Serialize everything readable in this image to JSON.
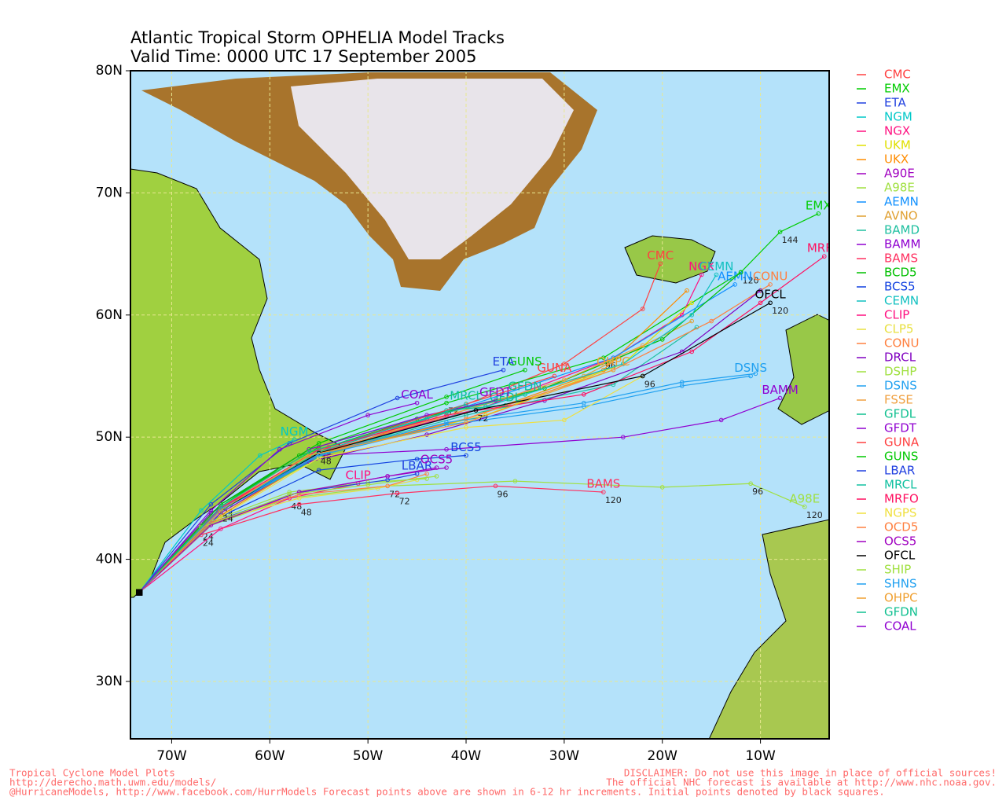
{
  "chart_data": {
    "type": "track-map",
    "title": "Atlantic Tropical Storm OPHELIA Model Tracks",
    "subtitle": "Valid Time: 0000 UTC 17 September 2005",
    "xlim": [
      -74.2,
      -3.0
    ],
    "ylim": [
      25.3,
      80.0
    ],
    "xticks": [
      {
        "value": -70,
        "label": "70W"
      },
      {
        "value": -60,
        "label": "60W"
      },
      {
        "value": -50,
        "label": "50W"
      },
      {
        "value": -40,
        "label": "40W"
      },
      {
        "value": -30,
        "label": "30W"
      },
      {
        "value": -20,
        "label": "20W"
      },
      {
        "value": -10,
        "label": "10W"
      }
    ],
    "yticks": [
      {
        "value": 30,
        "label": "30N"
      },
      {
        "value": 40,
        "label": "40N"
      },
      {
        "value": 50,
        "label": "50N"
      },
      {
        "value": 60,
        "label": "60N"
      },
      {
        "value": 70,
        "label": "70N"
      },
      {
        "value": 80,
        "label": "80N"
      }
    ],
    "grid": true,
    "series": [
      {
        "name": "CMC",
        "color": "#ff4040",
        "end_label": true,
        "lon": [
          -73.3,
          -66,
          -56,
          -42,
          -30,
          -22,
          -20.2
        ],
        "lat": [
          37.3,
          43.5,
          48.3,
          52,
          56,
          60.5,
          64.2
        ]
      },
      {
        "name": "EMX",
        "color": "#00cc00",
        "end_label": true,
        "lon": [
          -73.3,
          -65,
          -55,
          -42,
          -26,
          -12,
          -8,
          -4.1
        ],
        "lat": [
          37.3,
          44.5,
          49.2,
          52.8,
          56.5,
          63.5,
          66.8,
          68.3
        ],
        "hours": [
          null,
          24,
          48,
          72,
          96,
          120,
          144,
          null
        ]
      },
      {
        "name": "ETA",
        "color": "#2040e0",
        "end_label": true,
        "lon": [
          -73.3,
          -66,
          -58,
          -47,
          -36.2
        ],
        "lat": [
          37.3,
          44.5,
          49.5,
          53.2,
          55.5
        ]
      },
      {
        "name": "NGM",
        "color": "#00c8c8",
        "end_label": true,
        "lon": [
          -73.3,
          -67,
          -61,
          -57.5
        ],
        "lat": [
          37.3,
          44,
          48.5,
          49.8
        ]
      },
      {
        "name": "NGX",
        "color": "#ff1080",
        "end_label": true,
        "lon": [
          -73.3,
          -65,
          -54,
          -38,
          -25,
          -18,
          -16
        ],
        "lat": [
          37.3,
          44,
          49,
          52.5,
          56.5,
          60,
          63.3
        ]
      },
      {
        "name": "UKM",
        "color": "#e0e000",
        "end_label": false,
        "lon": [
          -73.3,
          -65,
          -54,
          -38,
          -24,
          -17
        ],
        "lat": [
          37.3,
          43.8,
          48.8,
          51.8,
          56,
          61
        ]
      },
      {
        "name": "UKX",
        "color": "#ff8c00",
        "end_label": false,
        "lon": [
          -73.3,
          -65,
          -55,
          -40,
          -26,
          -17.5
        ],
        "lat": [
          37.3,
          43.6,
          48.5,
          51.5,
          55.5,
          62
        ]
      },
      {
        "name": "A90E",
        "color": "#a000c0",
        "end_label": false,
        "lon": [
          -73.3,
          -67,
          -58,
          -48,
          -42
        ],
        "lat": [
          37.3,
          42.5,
          45.3,
          46.8,
          47.5
        ]
      },
      {
        "name": "A98E",
        "color": "#a0e040",
        "end_label": true,
        "lon": [
          -73.3,
          -67,
          -58,
          -48,
          -35,
          -20,
          -11,
          -5.5
        ],
        "lat": [
          37.3,
          42.5,
          45,
          46,
          46.4,
          45.9,
          46.2,
          44.3
        ],
        "hours": [
          null,
          24,
          48,
          72,
          null,
          null,
          96,
          120
        ]
      },
      {
        "name": "AEMN",
        "color": "#1090ff",
        "end_label": true,
        "lon": [
          -73.3,
          -65,
          -55,
          -40,
          -25,
          -12.6
        ],
        "lat": [
          37.3,
          44,
          49,
          52.5,
          56.5,
          62.5
        ]
      },
      {
        "name": "AVNO",
        "color": "#e0a030",
        "end_label": false,
        "lon": [
          -73.3,
          -65,
          -55,
          -41,
          -28,
          -17
        ],
        "lat": [
          37.3,
          44,
          48.7,
          52,
          55,
          59.5
        ]
      },
      {
        "name": "BAMD",
        "color": "#20c0a0",
        "end_label": false,
        "lon": [
          -73.3,
          -64,
          -54,
          -40,
          -25,
          -16.5
        ],
        "lat": [
          37.3,
          44.5,
          48.8,
          51.8,
          54.3,
          59
        ]
      },
      {
        "name": "BAMM",
        "color": "#9000d0",
        "end_label": true,
        "lon": [
          -73.3,
          -65,
          -55,
          -42,
          -24,
          -14,
          -8
        ],
        "lat": [
          37.3,
          43.8,
          48.5,
          49,
          50,
          51.4,
          53.2
        ]
      },
      {
        "name": "BAMS",
        "color": "#ff3060",
        "end_label": true,
        "lon": [
          -73.3,
          -67,
          -57,
          -47,
          -37,
          -26
        ],
        "lat": [
          37.3,
          42,
          44.5,
          45.4,
          46,
          45.5
        ],
        "hours": [
          null,
          24,
          48,
          72,
          96,
          120
        ]
      },
      {
        "name": "BCD5",
        "color": "#00c000",
        "end_label": false,
        "lon": [
          -73.3,
          -66,
          -57,
          -45,
          -32,
          -20,
          -12
        ],
        "lat": [
          37.3,
          43.8,
          48.5,
          51.5,
          54,
          58,
          63.5
        ]
      },
      {
        "name": "BCS5",
        "color": "#1040e0",
        "end_label": true,
        "lon": [
          -73.3,
          -65,
          -55,
          -45,
          -40
        ],
        "lat": [
          37.3,
          43.5,
          47.3,
          48.2,
          48.5
        ]
      },
      {
        "name": "CEMN",
        "color": "#10c0c0",
        "end_label": true,
        "lon": [
          -73.3,
          -65,
          -54,
          -38,
          -24,
          -17,
          -14.5
        ],
        "lat": [
          37.3,
          44,
          48.8,
          52.5,
          56,
          60,
          63.3
        ]
      },
      {
        "name": "CLIP",
        "color": "#ff1080",
        "end_label": true,
        "lon": [
          -73.3,
          -65,
          -58,
          -51
        ],
        "lat": [
          37.3,
          42.5,
          45,
          46.2
        ]
      },
      {
        "name": "CLP5",
        "color": "#e8e040",
        "end_label": false,
        "lon": [
          -73.3,
          -66,
          -57,
          -49,
          -45
        ],
        "lat": [
          37.3,
          43,
          45,
          45.8,
          46.5
        ]
      },
      {
        "name": "CONU",
        "color": "#ff8040",
        "end_label": true,
        "lon": [
          -73.3,
          -65,
          -55,
          -40,
          -25,
          -15,
          -9
        ],
        "lat": [
          37.3,
          44,
          48.7,
          51.5,
          55.5,
          59.5,
          62.5
        ]
      },
      {
        "name": "DRCL",
        "color": "#8000c0",
        "end_label": false,
        "lon": [
          -73.3,
          -66,
          -56,
          -44,
          -32,
          -18,
          -10
        ],
        "lat": [
          37.3,
          43.8,
          48,
          50.2,
          53,
          57,
          62
        ]
      },
      {
        "name": "DSHP",
        "color": "#a0e040",
        "end_label": false,
        "lon": [
          -73.3,
          -67,
          -58,
          -50,
          -44
        ],
        "lat": [
          37.3,
          42.8,
          45.5,
          46.3,
          46.6
        ]
      },
      {
        "name": "DSNS",
        "color": "#20a0f0",
        "end_label": true,
        "lon": [
          -73.3,
          -65,
          -55,
          -42,
          -28,
          -18,
          -11
        ],
        "lat": [
          37.3,
          44,
          48.5,
          51,
          52.5,
          54.2,
          55
        ]
      },
      {
        "name": "FSSE",
        "color": "#f0a040",
        "end_label": false,
        "lon": [
          -73.3,
          -65,
          -56,
          -43,
          -30,
          -22
        ],
        "lat": [
          37.3,
          44.2,
          48.8,
          51.5,
          54.7,
          57.5
        ]
      },
      {
        "name": "GFDL",
        "color": "#10c090",
        "end_label": true,
        "lon": [
          -73.3,
          -65,
          -56,
          -42,
          -36
        ],
        "lat": [
          37.3,
          44.5,
          49,
          52.2,
          52.6
        ]
      },
      {
        "name": "GFDT",
        "color": "#9000d0",
        "end_label": true,
        "lon": [
          -73.3,
          -65,
          -56,
          -44,
          -37
        ],
        "lat": [
          37.3,
          44.5,
          49,
          51.8,
          53
        ]
      },
      {
        "name": "GUNA",
        "color": "#ff4040",
        "end_label": true,
        "lon": [
          -73.3,
          -65,
          -54,
          -40,
          -31
        ],
        "lat": [
          37.3,
          44.2,
          49.2,
          52.7,
          55
        ]
      },
      {
        "name": "GUNS",
        "color": "#00c800",
        "end_label": true,
        "lon": [
          -73.3,
          -65,
          -55,
          -42,
          -34
        ],
        "lat": [
          37.3,
          44.5,
          49.5,
          53.3,
          55.5
        ]
      },
      {
        "name": "LBAR",
        "color": "#2040e0",
        "end_label": true,
        "lon": [
          -73.3,
          -66,
          -57,
          -48,
          -45
        ],
        "lat": [
          37.3,
          43,
          45.5,
          46.5,
          47
        ]
      },
      {
        "name": "MRCL",
        "color": "#10c0a0",
        "end_label": true,
        "lon": [
          -73.3,
          -65,
          -55,
          -44,
          -40
        ],
        "lat": [
          37.3,
          44,
          48.8,
          51.5,
          52.7
        ]
      },
      {
        "name": "MRFO",
        "color": "#ff1060",
        "end_label": true,
        "lon": [
          -73.3,
          -65,
          -55,
          -42,
          -28,
          -17,
          -10,
          -3.5
        ],
        "lat": [
          37.3,
          44.2,
          49,
          51.8,
          53.5,
          57,
          61,
          64.8
        ]
      },
      {
        "name": "NGPS",
        "color": "#f0e040",
        "end_label": false,
        "lon": [
          -73.3,
          -65,
          -55,
          -40,
          -30,
          -22
        ],
        "lat": [
          37.3,
          43.5,
          48.3,
          50.8,
          51.4,
          55
        ]
      },
      {
        "name": "OCD5",
        "color": "#ff8040",
        "end_label": false,
        "lon": [
          -73.3,
          -66,
          -57,
          -48,
          -44
        ],
        "lat": [
          37.3,
          43,
          45.3,
          46,
          47
        ]
      },
      {
        "name": "OCS5",
        "color": "#a000c0",
        "end_label": true,
        "lon": [
          -73.3,
          -66,
          -57,
          -48,
          -43
        ],
        "lat": [
          37.3,
          42.8,
          45.5,
          46.8,
          47.5
        ]
      },
      {
        "name": "OFCL",
        "color": "#000000",
        "end_label": true,
        "lon": [
          -73.3,
          -65,
          -55,
          -39,
          -22,
          -9
        ],
        "lat": [
          37.3,
          44,
          48.7,
          52.2,
          55,
          61
        ],
        "hours": [
          null,
          24,
          48,
          72,
          96,
          120
        ]
      },
      {
        "name": "SHIP",
        "color": "#a0e040",
        "end_label": false,
        "lon": [
          -73.3,
          -67,
          -58,
          -50,
          -43
        ],
        "lat": [
          37.3,
          42.6,
          45.3,
          46.1,
          46.8
        ]
      },
      {
        "name": "SHNS",
        "color": "#20a0f0",
        "end_label": false,
        "lon": [
          -73.3,
          -65,
          -55,
          -42,
          -28,
          -18,
          -10.5
        ],
        "lat": [
          37.3,
          44.1,
          48.6,
          51.2,
          52.8,
          54.5,
          55.2
        ]
      },
      {
        "name": "OHPC",
        "color": "#f0a030",
        "end_label": true,
        "lon": [
          -73.3,
          -65,
          -56,
          -40,
          -25
        ],
        "lat": [
          37.3,
          44,
          48.5,
          51.2,
          55.5
        ]
      },
      {
        "name": "GFDN",
        "color": "#10c090",
        "end_label": true,
        "lon": [
          -73.3,
          -65,
          -56,
          -42,
          -34
        ],
        "lat": [
          37.3,
          44.3,
          48.8,
          52,
          53.5
        ]
      },
      {
        "name": "COAL",
        "color": "#9000d0",
        "end_label": true,
        "lon": [
          -73.3,
          -66,
          -59,
          -50,
          -45
        ],
        "lat": [
          37.3,
          44,
          49,
          51.8,
          52.8
        ]
      }
    ],
    "footer_left": [
      "Tropical Cyclone Model Plots",
      "http://derecho.math.uwm.edu/models/",
      "@HurricaneModels, http://www.facebook.com/HurrModels  Forecast points above are shown in 6-12 hr increments. Initial points denoted by black squares."
    ],
    "footer_right": [
      "DISCLAIMER: Do not use this image in place of official sources!",
      "The official NHC forecast is available at http://www.nhc.noaa.gov."
    ]
  }
}
